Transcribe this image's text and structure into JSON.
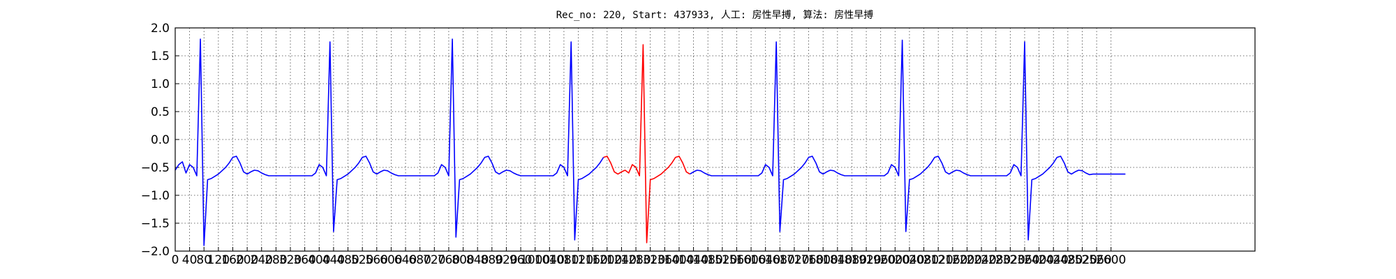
{
  "chart_data": {
    "type": "line",
    "title": "Rec_no: 220, Start: 437933, 人工: 房性早搏, 算法: 房性早搏",
    "xlim": [
      0,
      3000
    ],
    "xticks": [
      0,
      40,
      80,
      120,
      160,
      200,
      240,
      280,
      320,
      360,
      400,
      440,
      480,
      520,
      560,
      600,
      640,
      680,
      720,
      760,
      800,
      840,
      880,
      920,
      960,
      1000,
      1040,
      1080,
      1120,
      1160,
      1200,
      1240,
      1280,
      1320,
      1360,
      1400,
      1440,
      1480,
      1520,
      1560,
      1600,
      1640,
      1680,
      1720,
      1760,
      1800,
      1840,
      1880,
      1920,
      1960,
      2000,
      2040,
      2080,
      2120,
      2160,
      2200,
      2240,
      2280,
      2320,
      2360,
      2400,
      2440,
      2480,
      2520,
      2560,
      2600
    ],
    "ylim": [
      -2,
      2
    ],
    "yticks": [
      {
        "value": -2,
        "label": "−2.0"
      },
      {
        "value": -1.5,
        "label": "−1.5"
      },
      {
        "value": -1,
        "label": "−1.0"
      },
      {
        "value": -0.5,
        "label": "−0.5"
      },
      {
        "value": 0,
        "label": "0.0"
      },
      {
        "value": 0.5,
        "label": "0.5"
      },
      {
        "value": 1,
        "label": "1.0"
      },
      {
        "value": 1.5,
        "label": "1.5"
      },
      {
        "value": 2,
        "label": "2.0"
      }
    ],
    "grid": true,
    "series": [
      {
        "color": "#0000ff",
        "x": [
          0,
          10,
          20,
          30,
          40,
          50,
          60,
          70,
          80,
          90,
          100,
          110,
          120,
          130,
          140,
          150,
          160,
          170,
          180,
          190,
          200,
          210,
          220,
          230,
          240,
          250,
          260,
          270,
          280,
          290,
          300,
          310,
          320,
          330,
          340,
          350,
          360,
          370,
          380,
          390,
          400,
          410,
          420,
          430,
          440,
          450,
          460,
          470,
          480,
          490,
          500,
          510,
          520,
          530,
          540,
          550,
          560,
          570,
          580,
          590,
          600,
          610,
          620,
          630,
          640,
          650,
          660,
          670,
          680,
          690,
          700,
          710,
          720,
          730,
          740,
          750,
          760,
          770,
          780,
          790,
          800,
          810,
          820,
          830,
          840,
          850,
          860,
          870,
          880,
          890,
          900,
          910,
          920,
          930,
          940,
          950,
          960,
          970,
          980,
          990,
          1000,
          1010,
          1020,
          1030,
          1040,
          1050,
          1060,
          1070,
          1080,
          1090,
          1100,
          1110,
          1120,
          1130,
          1140,
          1150,
          1160,
          1170,
          1180,
          1190,
          1200,
          1210,
          1220,
          1230,
          1240,
          1250,
          1260,
          1270,
          1280,
          1290,
          1300,
          1310,
          1320,
          1330,
          1340,
          1350,
          1360,
          1370,
          1380,
          1390,
          1400,
          1410,
          1420,
          1430,
          1440,
          1450,
          1460,
          1470,
          1480,
          1490,
          1500,
          1510,
          1520,
          1530,
          1540,
          1550,
          1560,
          1570,
          1580,
          1590,
          1600,
          1610,
          1620,
          1630,
          1640,
          1650,
          1660,
          1670,
          1680,
          1690,
          1700,
          1710,
          1720,
          1730,
          1740,
          1750,
          1760,
          1770,
          1780,
          1790,
          1800,
          1810,
          1820,
          1830,
          1840,
          1850,
          1860,
          1870,
          1880,
          1890,
          1900,
          1910,
          1920,
          1930,
          1940,
          1950,
          1960,
          1970,
          1980,
          1990,
          2000,
          2010,
          2020,
          2030,
          2040,
          2050,
          2060,
          2070,
          2080,
          2090,
          2100,
          2110,
          2120,
          2130,
          2140,
          2150,
          2160,
          2170,
          2180,
          2190,
          2200,
          2210,
          2220,
          2230,
          2240,
          2250,
          2260,
          2270,
          2280,
          2290,
          2300,
          2310,
          2320,
          2330,
          2340,
          2350,
          2360,
          2370,
          2380,
          2390,
          2400,
          2410,
          2420,
          2430,
          2440,
          2450,
          2460,
          2470,
          2480,
          2490,
          2500,
          2510,
          2520,
          2530,
          2540,
          2550,
          2560,
          2570,
          2580,
          2590,
          2600,
          2610,
          2620,
          2630,
          2640
        ],
        "values": [
          -0.55,
          -0.45,
          -0.4,
          -0.6,
          -0.45,
          -0.5,
          -0.65,
          1.8,
          -1.9,
          -0.72,
          -0.7,
          -0.66,
          -0.62,
          -0.56,
          -0.5,
          -0.42,
          -0.32,
          -0.3,
          -0.42,
          -0.58,
          -0.62,
          -0.58,
          -0.55,
          -0.56,
          -0.6,
          -0.63,
          -0.65,
          -0.65,
          -0.65,
          -0.65,
          -0.65,
          -0.65,
          -0.65,
          -0.65,
          -0.65,
          -0.65,
          -0.65,
          -0.65,
          -0.65,
          -0.6,
          -0.45,
          -0.5,
          -0.65,
          1.75,
          -1.65,
          -0.72,
          -0.7,
          -0.66,
          -0.62,
          -0.56,
          -0.5,
          -0.42,
          -0.32,
          -0.3,
          -0.42,
          -0.58,
          -0.62,
          -0.58,
          -0.55,
          -0.56,
          -0.6,
          -0.63,
          -0.65,
          -0.65,
          -0.65,
          -0.65,
          -0.65,
          -0.65,
          -0.65,
          -0.65,
          -0.65,
          -0.65,
          -0.65,
          -0.6,
          -0.45,
          -0.5,
          -0.65,
          1.8,
          -1.75,
          -0.72,
          -0.7,
          -0.66,
          -0.62,
          -0.56,
          -0.5,
          -0.42,
          -0.32,
          -0.3,
          -0.42,
          -0.58,
          -0.62,
          -0.58,
          -0.55,
          -0.56,
          -0.6,
          -0.63,
          -0.65,
          -0.65,
          -0.65,
          -0.65,
          -0.65,
          -0.65,
          -0.65,
          -0.65,
          -0.65,
          -0.65,
          -0.6,
          -0.45,
          -0.5,
          -0.65,
          1.75,
          -1.8,
          -0.72,
          -0.7,
          -0.66,
          -0.62,
          -0.56,
          -0.5,
          -0.42,
          -0.32,
          null,
          null,
          null,
          null,
          null,
          null,
          null,
          null,
          null,
          null,
          null,
          null,
          null,
          null,
          null,
          null,
          null,
          null,
          null,
          null,
          null,
          null,
          null,
          -0.62,
          -0.58,
          -0.55,
          -0.56,
          -0.6,
          -0.63,
          -0.65,
          -0.65,
          -0.65,
          -0.65,
          -0.65,
          -0.65,
          -0.65,
          -0.65,
          -0.65,
          -0.65,
          -0.65,
          -0.65,
          -0.65,
          -0.65,
          -0.6,
          -0.45,
          -0.5,
          -0.65,
          1.75,
          -1.65,
          -0.72,
          -0.7,
          -0.66,
          -0.62,
          -0.56,
          -0.5,
          -0.42,
          -0.32,
          -0.3,
          -0.42,
          -0.58,
          -0.62,
          -0.58,
          -0.55,
          -0.56,
          -0.6,
          -0.63,
          -0.65,
          -0.65,
          -0.65,
          -0.65,
          -0.65,
          -0.65,
          -0.65,
          -0.65,
          -0.65,
          -0.65,
          -0.65,
          -0.65,
          -0.6,
          -0.45,
          -0.5,
          -0.65,
          1.78,
          -1.65,
          -0.72,
          -0.7,
          -0.66,
          -0.62,
          -0.56,
          -0.5,
          -0.42,
          -0.32,
          -0.3,
          -0.42,
          -0.58,
          -0.62,
          -0.58,
          -0.55,
          -0.56,
          -0.6,
          -0.63,
          -0.65,
          -0.65,
          -0.65,
          -0.65,
          -0.65,
          -0.65,
          -0.65,
          -0.65,
          -0.65,
          -0.65,
          -0.65,
          -0.6,
          -0.45,
          -0.5,
          -0.65,
          1.75,
          -1.8,
          -0.72,
          -0.7,
          -0.66,
          -0.62,
          -0.56,
          -0.5,
          -0.42,
          -0.32,
          -0.3,
          -0.42,
          -0.58,
          -0.62,
          -0.58,
          -0.55,
          -0.56,
          -0.6,
          -0.63,
          -0.62,
          -0.62,
          -0.62,
          -0.62,
          -0.62,
          -0.62,
          -0.62,
          -0.62,
          -0.62,
          -0.62
        ]
      },
      {
        "color": "#ff0000",
        "x": [
          1190,
          1200,
          1210,
          1220,
          1230,
          1240,
          1250,
          1260,
          1270,
          1280,
          1290,
          1300,
          1310,
          1320,
          1330,
          1340,
          1350,
          1360,
          1370,
          1380,
          1390,
          1400,
          1410,
          1420,
          1430
        ],
        "values": [
          -0.32,
          -0.3,
          -0.42,
          -0.58,
          -0.62,
          -0.58,
          -0.55,
          -0.6,
          -0.45,
          -0.5,
          -0.65,
          1.7,
          -1.85,
          -0.72,
          -0.7,
          -0.66,
          -0.62,
          -0.56,
          -0.5,
          -0.42,
          -0.32,
          -0.3,
          -0.42,
          -0.58,
          -0.62
        ]
      }
    ]
  }
}
